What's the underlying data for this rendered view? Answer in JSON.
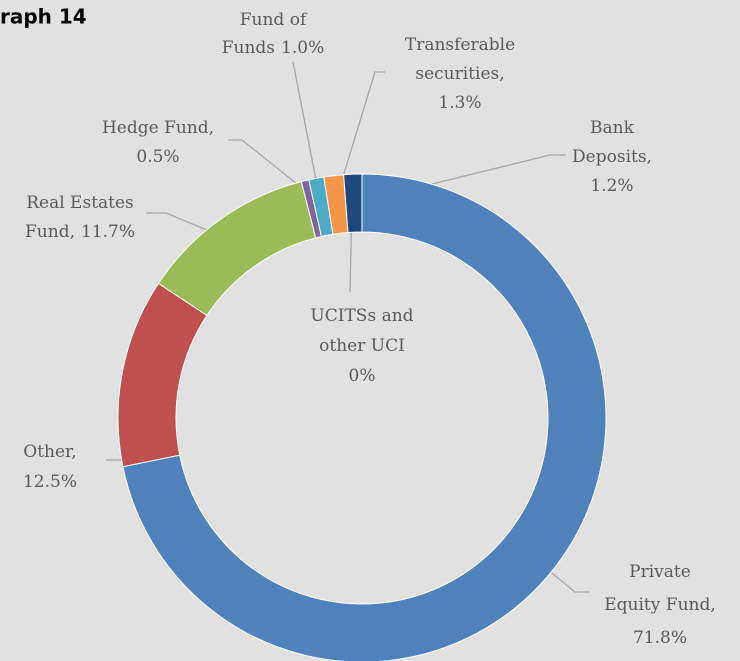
{
  "chart_data": {
    "type": "donut",
    "title": "raph 14",
    "categories": [
      [
        "Private",
        "Equity Fund,"
      ],
      [
        "Other,"
      ],
      [
        "Real Estates",
        "Fund,"
      ],
      [
        "Hedge Fund,"
      ],
      [
        "Fund of",
        "Funds"
      ],
      [
        "Transferable",
        "securities,"
      ],
      [
        "Bank",
        "Deposits,"
      ],
      [
        "UCITSs and",
        "other UCI"
      ]
    ],
    "values": [
      71.8,
      12.5,
      11.7,
      0.5,
      1.0,
      1.3,
      1.2,
      0
    ],
    "value_labels": [
      "71.8%",
      "12.5%",
      "11.7%",
      "0.5%",
      "1.0%",
      "1.3%",
      "1.2%",
      "0%"
    ],
    "inline_value": [
      false,
      false,
      true,
      false,
      true,
      false,
      false,
      false
    ],
    "colors": [
      "#4f81bd",
      "#c0504d",
      "#9bbb59",
      "#8064a2",
      "#4bacc6",
      "#f79646",
      "#1f497d",
      "#7f7f7f"
    ]
  }
}
